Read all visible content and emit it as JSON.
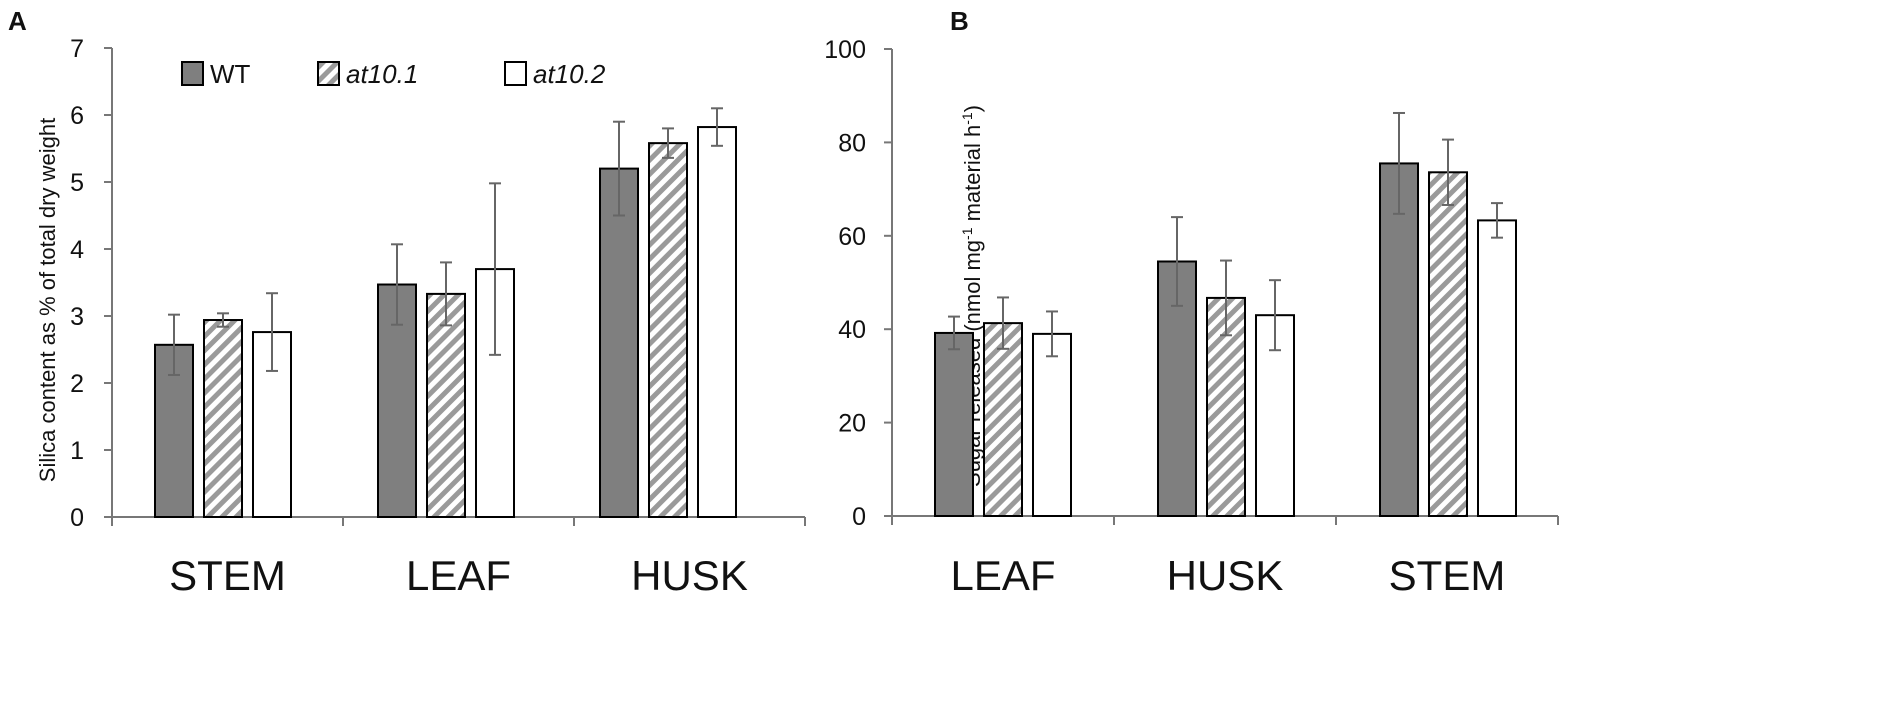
{
  "chart_data": [
    {
      "panel": "A",
      "type": "bar",
      "title": "",
      "xlabel": "",
      "ylabel": "Silica content as % of total dry weight",
      "ylim": [
        0,
        7
      ],
      "yticks": [
        0,
        1,
        2,
        3,
        4,
        5,
        6,
        7
      ],
      "categories": [
        "STEM",
        "LEAF",
        "HUSK"
      ],
      "series": [
        {
          "name": "WT",
          "pattern": "solid-gray",
          "color": "#7f7f7f",
          "values": [
            2.57,
            3.47,
            5.2
          ],
          "errors": [
            0.45,
            0.6,
            0.7
          ]
        },
        {
          "name": "at10.1",
          "pattern": "diagonal-hatch",
          "color": "#9a9a9a",
          "values": [
            2.94,
            3.33,
            5.58
          ],
          "errors": [
            0.1,
            0.47,
            0.22
          ]
        },
        {
          "name": "at10.2",
          "pattern": "white",
          "color": "#ffffff",
          "values": [
            2.76,
            3.7,
            5.82
          ],
          "errors": [
            0.58,
            1.28,
            0.28
          ]
        }
      ],
      "legend": {
        "position": "top-left",
        "items": [
          "WT",
          "at10.1",
          "at10.2"
        ]
      },
      "grid": false
    },
    {
      "panel": "B",
      "type": "bar",
      "title": "",
      "xlabel": "",
      "ylabel_parts": [
        "Sugar released (nmol mg",
        "-1",
        " material h",
        "-1",
        ")"
      ],
      "ylim": [
        0,
        100
      ],
      "yticks": [
        0,
        20,
        40,
        60,
        80,
        100
      ],
      "categories": [
        "LEAF",
        "HUSK",
        "STEM"
      ],
      "series": [
        {
          "name": "WT",
          "pattern": "solid-gray",
          "color": "#7f7f7f",
          "values": [
            39.2,
            54.5,
            75.5
          ],
          "errors": [
            3.5,
            9.5,
            10.8
          ]
        },
        {
          "name": "at10.1",
          "pattern": "diagonal-hatch",
          "color": "#9a9a9a",
          "values": [
            41.3,
            46.7,
            73.6
          ],
          "errors": [
            5.5,
            8.0,
            7.0
          ]
        },
        {
          "name": "at10.2",
          "pattern": "white",
          "color": "#ffffff",
          "values": [
            39.0,
            43.0,
            63.3
          ],
          "errors": [
            4.8,
            7.5,
            3.7
          ]
        }
      ],
      "grid": false
    }
  ]
}
